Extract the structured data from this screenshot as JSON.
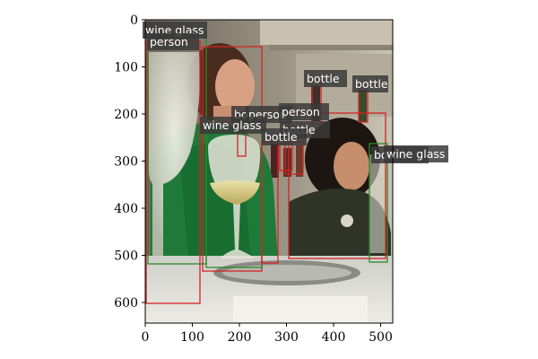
{
  "axes": {
    "x_ticks": [
      "0",
      "100",
      "200",
      "300",
      "400",
      "500"
    ],
    "y_ticks": [
      "0",
      "100",
      "200",
      "300",
      "400",
      "500",
      "600"
    ]
  },
  "colors": {
    "person_box": "#d42323",
    "wine_glass_box": "#2a8a2a",
    "bottle_box": "#d42323",
    "label_background": "#3a3a3a"
  },
  "detections": [
    {
      "label": "wine glass",
      "class": "wine-glass"
    },
    {
      "label": "person",
      "class": "person"
    },
    {
      "label": "bottle",
      "class": "bottle"
    },
    {
      "label": "bottle",
      "class": "bottle"
    },
    {
      "label": "bo",
      "class": "bottle"
    },
    {
      "label": "person",
      "class": "person"
    },
    {
      "label": "person",
      "class": "person"
    },
    {
      "label": "wine glass",
      "class": "wine-glass"
    },
    {
      "label": "bottle",
      "class": "bottle"
    },
    {
      "label": "bottle",
      "class": "bottle"
    },
    {
      "label": "bottle",
      "class": "bottle"
    },
    {
      "label": "wine glass",
      "class": "wine-glass"
    },
    {
      "label": "wine glass",
      "class": "wine-glass"
    }
  ]
}
